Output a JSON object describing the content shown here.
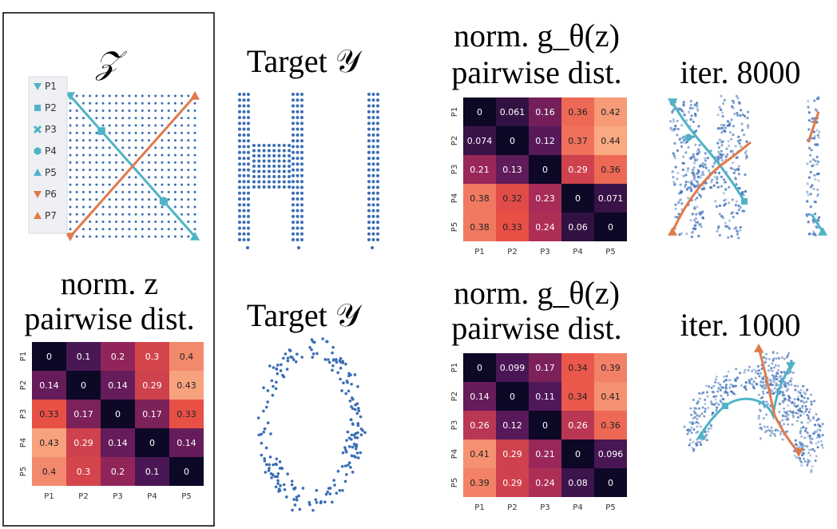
{
  "titles": {
    "z_space": "𝒵",
    "target_top": "Target 𝒴",
    "norm_g_top_line1": "norm. g_θ(z)",
    "norm_g_top_line2": "pairwise dist.",
    "iter_top": "iter. 8000",
    "norm_z_line1": "norm. z",
    "norm_z_line2": "pairwise dist.",
    "target_bottom": "Target 𝒴",
    "norm_g_bottom_line1": "norm. g_θ(z)",
    "norm_g_bottom_line2": "pairwise dist.",
    "iter_bottom": "iter. 1000"
  },
  "legend": {
    "items": [
      {
        "label": "P1",
        "marker": "triangle-down",
        "color": "#4fb3c6"
      },
      {
        "label": "P2",
        "marker": "square",
        "color": "#4fb3c6"
      },
      {
        "label": "P3",
        "marker": "x",
        "color": "#4fb3c6"
      },
      {
        "label": "P4",
        "marker": "hexagon",
        "color": "#4fb3c6"
      },
      {
        "label": "P5",
        "marker": "triangle-up",
        "color": "#4fb3c6"
      },
      {
        "label": "P6",
        "marker": "triangle-down",
        "color": "#e07a4a"
      },
      {
        "label": "P7",
        "marker": "triangle-up",
        "color": "#e07a4a"
      }
    ]
  },
  "colors": {
    "cyan": "#4fb3c6",
    "orange": "#e07a4a",
    "dots": "#3a6db5"
  },
  "heatmaps": [
    {
      "id": "g-top",
      "labels": [
        "P1",
        "P2",
        "P3",
        "P4",
        "P5"
      ],
      "cells": [
        [
          "0",
          "0.061",
          "0.16",
          "0.36",
          "0.42"
        ],
        [
          "0.074",
          "0",
          "0.12",
          "0.37",
          "0.44"
        ],
        [
          "0.21",
          "0.13",
          "0",
          "0.29",
          "0.36"
        ],
        [
          "0.38",
          "0.32",
          "0.23",
          "0",
          "0.071"
        ],
        [
          "0.38",
          "0.33",
          "0.24",
          "0.06",
          "0"
        ]
      ]
    },
    {
      "id": "z",
      "labels": [
        "P1",
        "P2",
        "P3",
        "P4",
        "P5"
      ],
      "cells": [
        [
          "0",
          "0.1",
          "0.2",
          "0.3",
          "0.4"
        ],
        [
          "0.14",
          "0",
          "0.14",
          "0.29",
          "0.43"
        ],
        [
          "0.33",
          "0.17",
          "0",
          "0.17",
          "0.33"
        ],
        [
          "0.43",
          "0.29",
          "0.14",
          "0",
          "0.14"
        ],
        [
          "0.4",
          "0.3",
          "0.2",
          "0.1",
          "0"
        ]
      ]
    },
    {
      "id": "g-bottom",
      "labels": [
        "P1",
        "P2",
        "P3",
        "P4",
        "P5"
      ],
      "cells": [
        [
          "0",
          "0.099",
          "0.17",
          "0.34",
          "0.39"
        ],
        [
          "0.14",
          "0",
          "0.11",
          "0.34",
          "0.41"
        ],
        [
          "0.26",
          "0.12",
          "0",
          "0.26",
          "0.36"
        ],
        [
          "0.41",
          "0.29",
          "0.21",
          "0",
          "0.096"
        ],
        [
          "0.39",
          "0.29",
          "0.24",
          "0.08",
          "0"
        ]
      ]
    }
  ]
}
